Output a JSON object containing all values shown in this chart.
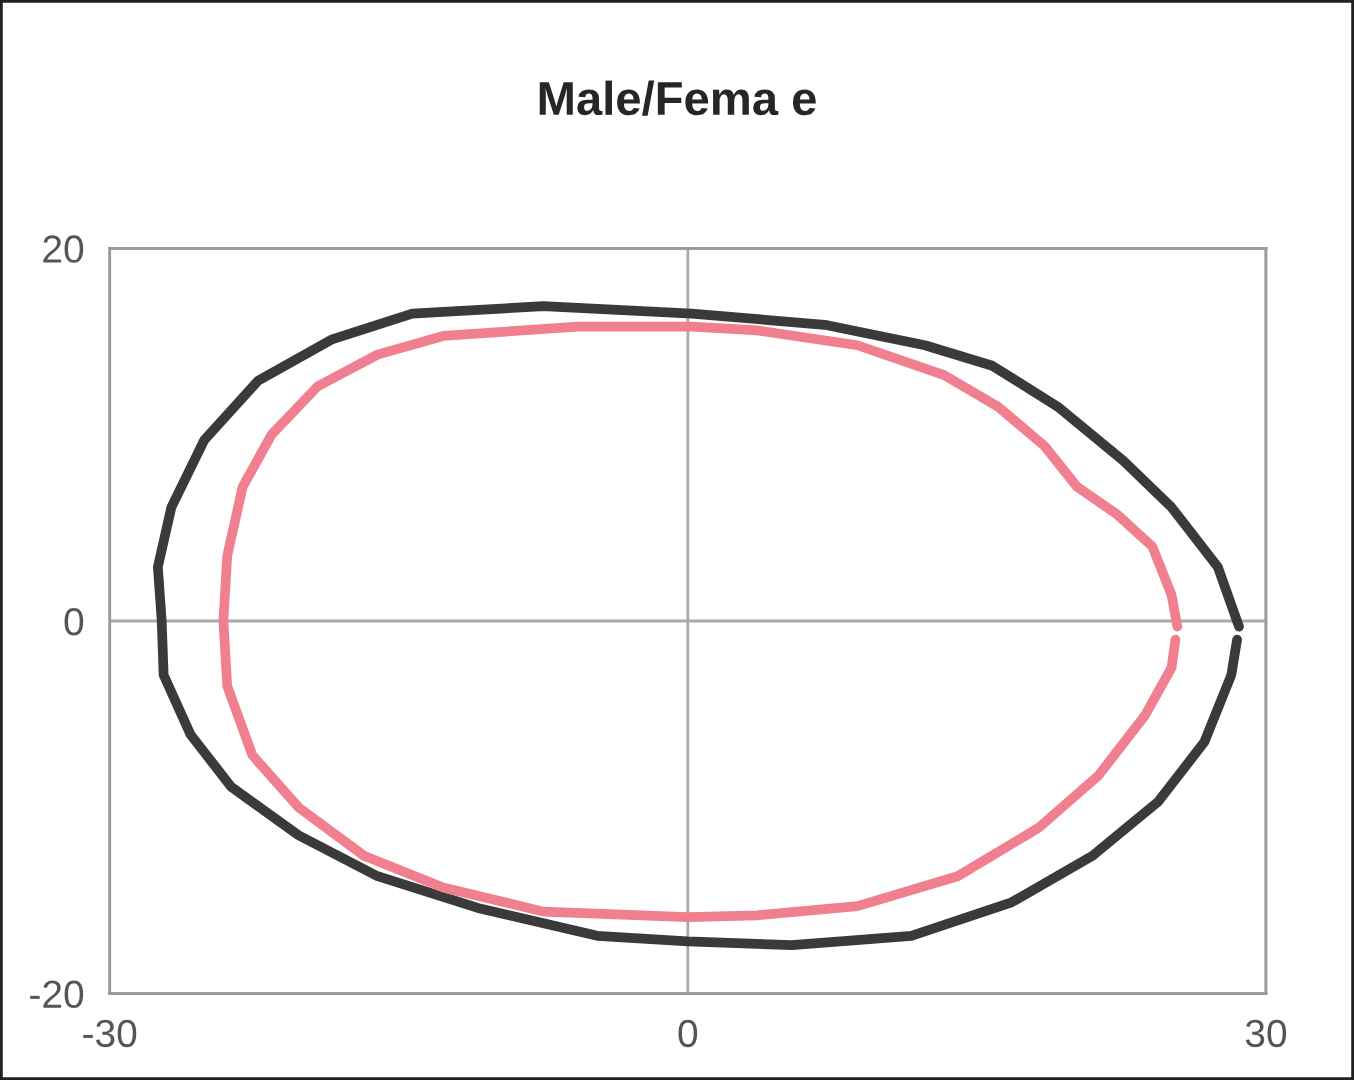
{
  "chart_data": {
    "type": "line",
    "title": "Male/Fema e",
    "xlim": [
      -30,
      30
    ],
    "ylim": [
      -20,
      20
    ],
    "xticks": [
      -30,
      0,
      30
    ],
    "yticks": [
      -20,
      0,
      20
    ],
    "grid": true,
    "line_style": "solid",
    "series": [
      {
        "color": "#3a3a3a",
        "x": [
          28.6,
          27.5,
          25.1,
          22.6,
          19.2,
          15.8,
          12.3,
          7.1,
          0.2,
          -7.5,
          -14.3,
          -18.5,
          -22.3,
          -25.1,
          -26.8,
          -27.5,
          -27.3,
          -27.2,
          -25.8,
          -23.7,
          -20.2,
          -16.1,
          -10.9,
          -4.7,
          0,
          5.4,
          11.6,
          16.8,
          21.0,
          24.4,
          26.8,
          28.2,
          28.5
        ],
        "values": [
          -0.3,
          2.9,
          6.1,
          8.6,
          11.5,
          13.7,
          14.8,
          15.9,
          16.5,
          16.9,
          16.5,
          15.1,
          12.9,
          9.7,
          6.1,
          2.9,
          0,
          -2.9,
          -6.1,
          -8.9,
          -11.5,
          -13.7,
          -15.4,
          -16.9,
          -17.2,
          -17.4,
          -16.9,
          -15.1,
          -12.6,
          -9.7,
          -6.5,
          -2.9,
          -1.0
        ]
      },
      {
        "color": "#f0808f",
        "x": [
          25.4,
          25.1,
          24.1,
          22.3,
          20.2,
          18.5,
          16.1,
          13.3,
          8.8,
          3.6,
          0.2,
          -5.7,
          -12.7,
          -16.1,
          -19.2,
          -21.6,
          -23.1,
          -23.9,
          -24.1,
          -23.9,
          -22.6,
          -20.2,
          -16.8,
          -12.7,
          -7.5,
          0,
          3.6,
          8.8,
          14.0,
          18.2,
          21.3,
          23.7,
          25.1,
          25.3
        ],
        "values": [
          -0.3,
          1.4,
          4.0,
          5.7,
          7.2,
          9.4,
          11.5,
          13.2,
          14.8,
          15.6,
          15.8,
          15.8,
          15.3,
          14.3,
          12.6,
          10.0,
          7.2,
          3.5,
          0,
          -3.5,
          -7.2,
          -10.0,
          -12.6,
          -14.3,
          -15.6,
          -15.9,
          -15.8,
          -15.3,
          -13.7,
          -11.1,
          -8.3,
          -5.1,
          -2.5,
          -1.0
        ]
      }
    ]
  }
}
